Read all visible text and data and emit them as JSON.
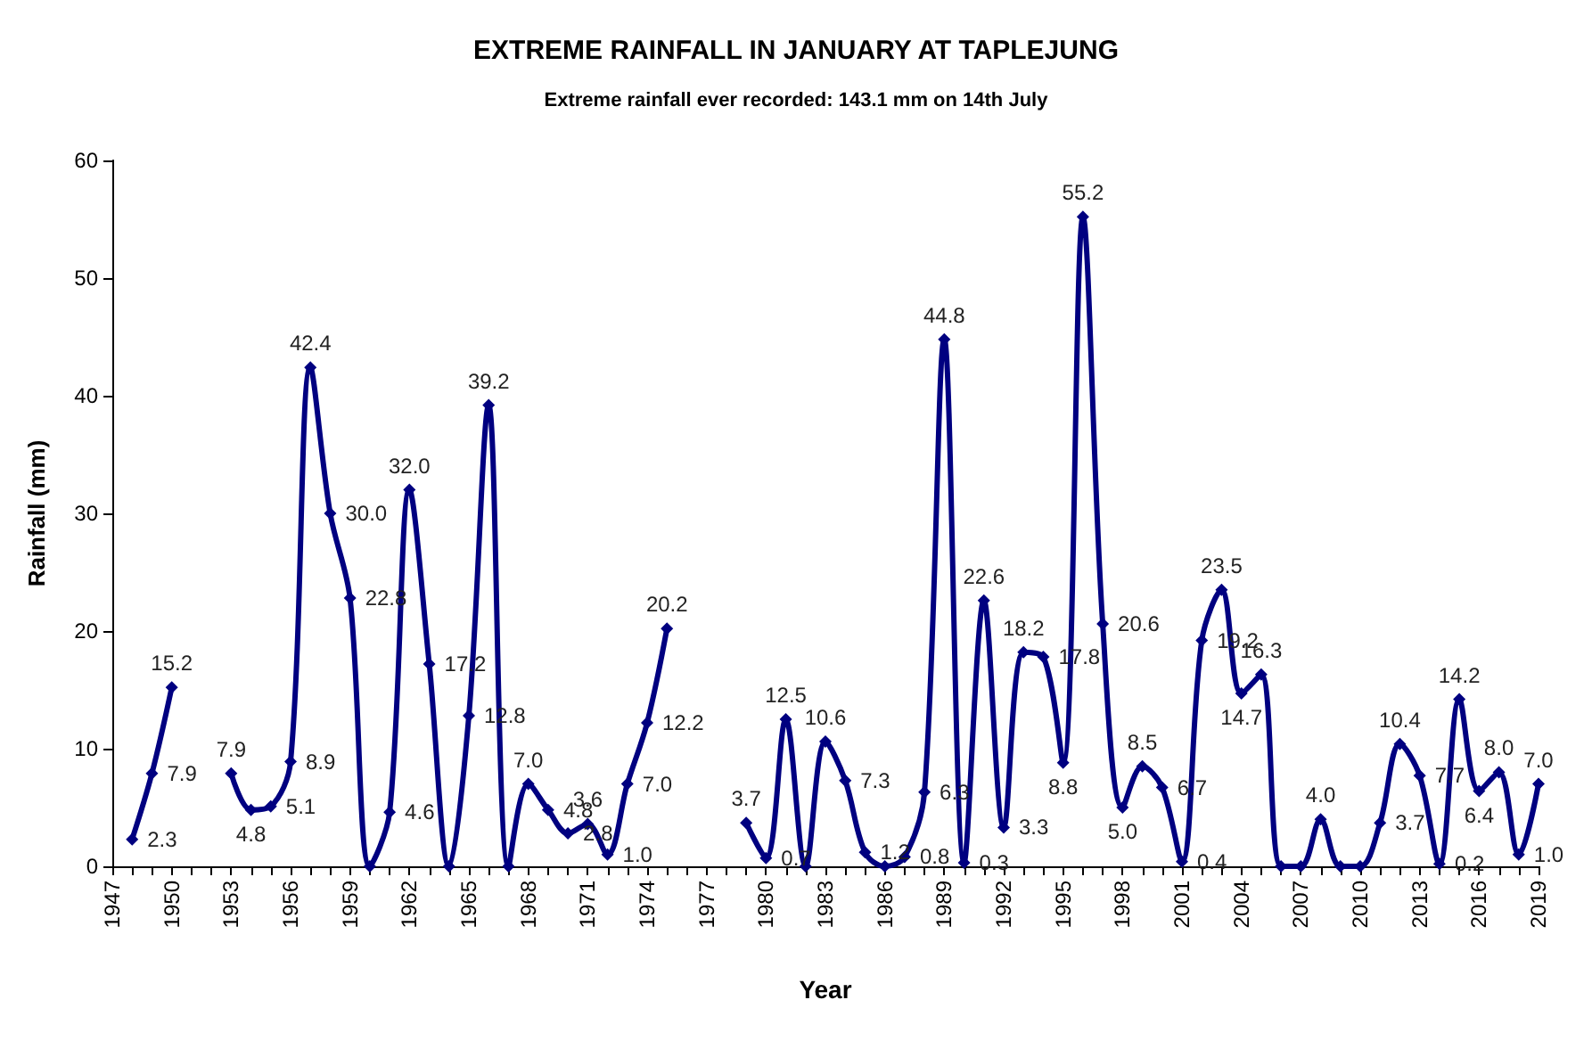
{
  "chart_data": {
    "type": "line",
    "title": "EXTREME RAINFALL IN JANUARY AT TAPLEJUNG",
    "subtitle": "Extreme rainfall ever recorded: 143.1 mm on 14th July",
    "xlabel": "Year",
    "ylabel": "Rainfall (mm)",
    "categories": [
      "1947",
      null,
      null,
      "1950",
      null,
      null,
      "1953",
      null,
      null,
      "1956",
      null,
      null,
      "1959",
      null,
      null,
      "1962",
      null,
      null,
      "1965",
      null,
      null,
      "1968",
      null,
      null,
      "1971",
      null,
      null,
      "1974",
      null,
      null,
      "1977",
      null,
      null,
      "1980",
      null,
      null,
      "1983",
      null,
      null,
      "1986",
      null,
      null,
      "1989",
      null,
      null,
      "1992",
      null,
      null,
      "1995",
      null,
      null,
      "1998",
      null,
      null,
      "2001",
      null,
      null,
      "2004",
      null,
      null,
      "2007",
      null,
      null,
      "2010",
      null,
      null,
      "2013",
      null,
      null,
      "2016",
      null,
      null,
      "2019"
    ],
    "series": [
      {
        "color": "#000080",
        "values": [
          null,
          2.3,
          7.9,
          15.2,
          null,
          null,
          7.9,
          4.8,
          5.1,
          8.9,
          42.4,
          30.0,
          22.8,
          0,
          4.6,
          32.0,
          17.2,
          0,
          12.8,
          39.2,
          0,
          7.0,
          4.8,
          2.8,
          3.6,
          1.0,
          7.0,
          12.2,
          20.2,
          null,
          null,
          null,
          3.7,
          0.7,
          12.5,
          0,
          10.6,
          7.3,
          1.2,
          0,
          0.8,
          6.3,
          44.8,
          0.3,
          22.6,
          3.3,
          18.2,
          17.8,
          8.8,
          55.2,
          20.6,
          5.0,
          8.5,
          6.7,
          0.4,
          19.2,
          23.5,
          14.7,
          16.3,
          0,
          0,
          4.0,
          0,
          0,
          3.7,
          10.4,
          7.7,
          0.2,
          14.2,
          6.4,
          8.0,
          1.0,
          7.0
        ],
        "value_labels": [
          null,
          "2.3",
          "7.9",
          "15.2",
          null,
          null,
          "7.9",
          "4.8",
          "5.1",
          "8.9",
          "42.4",
          "30.0",
          "22.8",
          null,
          "4.6",
          "32.0",
          "17.2",
          null,
          "12.8",
          "39.2",
          null,
          "7.0",
          "4.8",
          "2.8",
          "3.6",
          "1.0",
          "7.0",
          "12.2",
          "20.2",
          null,
          null,
          null,
          "3.7",
          "0.7",
          "12.5",
          null,
          "10.6",
          "7.3",
          "1.2",
          null,
          "0.8",
          "6.3",
          "44.8",
          "0.3",
          "22.6",
          "3.3",
          "18.2",
          "17.8",
          "8.8",
          "55.2",
          "20.6",
          "5.0",
          "8.5",
          "6.7",
          "0.4",
          "19.2",
          "23.5",
          "14.7",
          "16.3",
          null,
          null,
          "4.0",
          null,
          null,
          "3.7",
          "10.4",
          "7.7",
          "0.2",
          "14.2",
          "6.4",
          "8.0",
          "1.0",
          "7.0"
        ]
      }
    ],
    "ylim": [
      0,
      60
    ],
    "yticks": [
      0,
      10,
      20,
      30,
      40,
      50,
      60
    ],
    "grid": false,
    "marker": "diamond",
    "line_style": "solid"
  }
}
